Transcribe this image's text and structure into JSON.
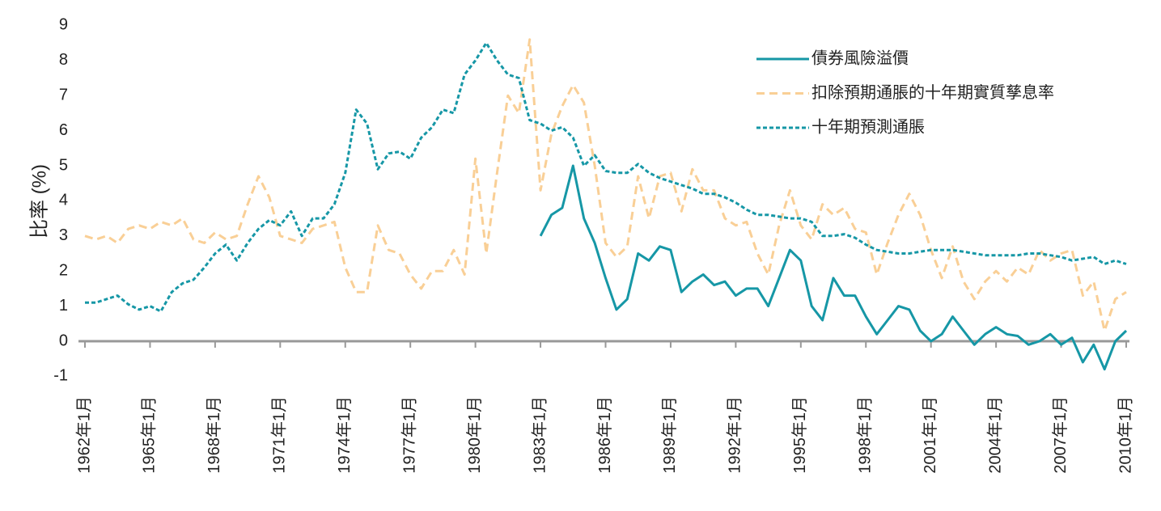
{
  "chart_data": {
    "type": "line",
    "ylabel": "比率 (%)",
    "categories": [
      "1962年1月",
      null,
      null,
      null,
      null,
      null,
      "1965年1月",
      null,
      null,
      null,
      null,
      null,
      "1968年1月",
      null,
      null,
      null,
      null,
      null,
      "1971年1月",
      null,
      null,
      null,
      null,
      null,
      "1974年1月",
      null,
      null,
      null,
      null,
      null,
      "1977年1月",
      null,
      null,
      null,
      null,
      null,
      "1980年1月",
      null,
      null,
      null,
      null,
      null,
      "1983年1月",
      null,
      null,
      null,
      null,
      null,
      "1986年1月",
      null,
      null,
      null,
      null,
      null,
      "1989年1月",
      null,
      null,
      null,
      null,
      null,
      "1992年1月",
      null,
      null,
      null,
      null,
      null,
      "1995年1月",
      null,
      null,
      null,
      null,
      null,
      "1998年1月",
      null,
      null,
      null,
      null,
      null,
      "2001年1月",
      null,
      null,
      null,
      null,
      null,
      "2004年1月",
      null,
      null,
      null,
      null,
      null,
      "2007年1月",
      null,
      null,
      null,
      null,
      null,
      "2010年1月"
    ],
    "series": [
      {
        "name": "債券風險溢價",
        "color": "#1697a6",
        "style": "solid",
        "values": [
          null,
          null,
          null,
          null,
          null,
          null,
          null,
          null,
          null,
          null,
          null,
          null,
          null,
          null,
          null,
          null,
          null,
          null,
          null,
          null,
          null,
          null,
          null,
          null,
          null,
          null,
          null,
          null,
          null,
          null,
          null,
          null,
          null,
          null,
          null,
          null,
          null,
          null,
          null,
          null,
          null,
          null,
          3.0,
          3.6,
          3.8,
          5.0,
          3.5,
          2.8,
          1.8,
          0.9,
          1.2,
          2.5,
          2.3,
          2.7,
          2.6,
          1.4,
          1.7,
          1.9,
          1.6,
          1.7,
          1.3,
          1.5,
          1.5,
          1.0,
          1.8,
          2.6,
          2.3,
          1.0,
          0.6,
          1.8,
          1.3,
          1.3,
          0.7,
          0.2,
          0.6,
          1.0,
          0.9,
          0.3,
          0.0,
          0.2,
          0.7,
          0.3,
          -0.1,
          0.2,
          0.4,
          0.2,
          0.15,
          -0.1,
          0.0,
          0.2,
          -0.1,
          0.1,
          -0.6,
          -0.1,
          -0.8,
          0.0,
          0.3
        ]
      },
      {
        "name": "扣除預期通脹的十年期實質孳息率",
        "color": "#f9cf96",
        "style": "dashed",
        "values": [
          3.0,
          2.9,
          3.0,
          2.8,
          3.2,
          3.3,
          3.2,
          3.4,
          3.3,
          3.5,
          2.9,
          2.8,
          3.1,
          2.9,
          3.0,
          3.9,
          4.7,
          4.1,
          3.0,
          2.9,
          2.8,
          3.2,
          3.3,
          3.4,
          2.1,
          1.4,
          1.4,
          3.3,
          2.6,
          2.5,
          1.9,
          1.5,
          2.0,
          2.0,
          2.6,
          1.9,
          5.2,
          2.5,
          4.8,
          7.0,
          6.5,
          8.6,
          4.3,
          5.9,
          6.7,
          7.3,
          6.8,
          5.0,
          2.8,
          2.4,
          2.7,
          4.7,
          3.5,
          4.7,
          4.8,
          3.7,
          4.9,
          4.3,
          4.3,
          3.5,
          3.3,
          3.4,
          2.5,
          1.9,
          3.3,
          4.3,
          3.3,
          2.9,
          3.9,
          3.6,
          3.8,
          3.2,
          3.1,
          1.9,
          2.8,
          3.6,
          4.2,
          3.6,
          2.6,
          1.8,
          2.7,
          1.7,
          1.2,
          1.7,
          2.0,
          1.7,
          2.1,
          1.9,
          2.6,
          2.3,
          2.5,
          2.6,
          1.3,
          1.7,
          0.3,
          1.2,
          1.4
        ]
      },
      {
        "name": "十年期預測通脹",
        "color": "#1697a6",
        "style": "dotted",
        "values": [
          1.1,
          1.1,
          1.2,
          1.3,
          1.05,
          0.9,
          1.0,
          0.85,
          1.4,
          1.65,
          1.75,
          2.1,
          2.5,
          2.75,
          2.3,
          2.8,
          3.2,
          3.45,
          3.3,
          3.7,
          3.0,
          3.5,
          3.5,
          3.9,
          4.8,
          6.6,
          6.2,
          4.9,
          5.35,
          5.4,
          5.2,
          5.8,
          6.1,
          6.6,
          6.5,
          7.6,
          8.0,
          8.5,
          8.0,
          7.6,
          7.5,
          6.3,
          6.2,
          6.0,
          6.1,
          5.8,
          5.0,
          5.3,
          4.85,
          4.8,
          4.8,
          5.05,
          4.8,
          4.65,
          4.55,
          4.45,
          4.35,
          4.2,
          4.2,
          4.1,
          3.95,
          3.75,
          3.6,
          3.6,
          3.55,
          3.5,
          3.5,
          3.4,
          3.0,
          3.0,
          3.05,
          2.95,
          2.75,
          2.6,
          2.55,
          2.5,
          2.5,
          2.55,
          2.6,
          2.6,
          2.6,
          2.55,
          2.5,
          2.45,
          2.45,
          2.45,
          2.45,
          2.5,
          2.5,
          2.45,
          2.4,
          2.3,
          2.35,
          2.4,
          2.2,
          2.3,
          2.2
        ]
      }
    ],
    "ylim": [
      -1,
      9
    ],
    "yticks": [
      -1,
      0,
      1,
      2,
      3,
      4,
      5,
      6,
      7,
      8,
      9
    ],
    "grid": false,
    "legend": "upper right"
  }
}
